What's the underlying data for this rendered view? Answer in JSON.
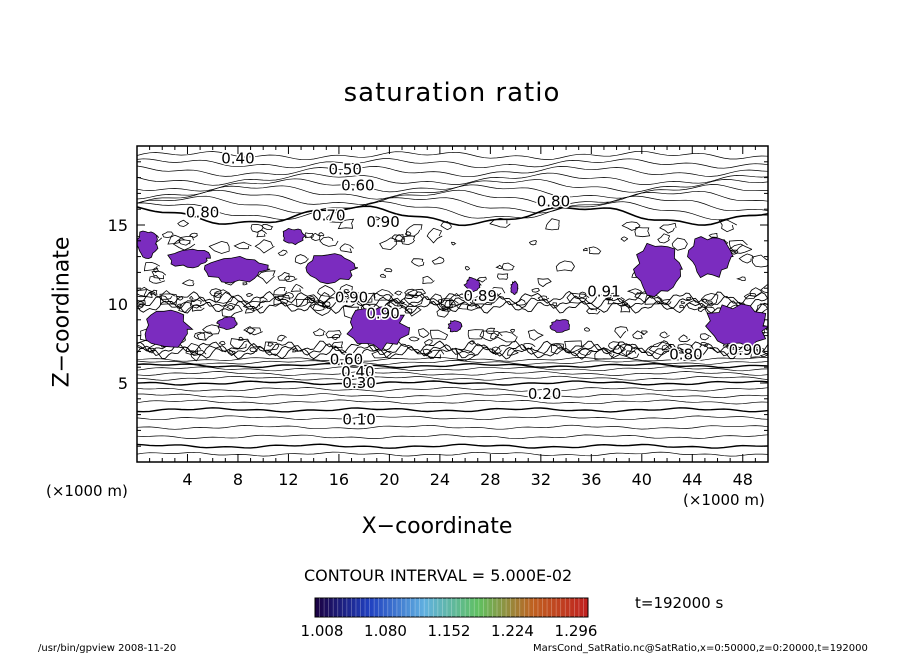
{
  "chart_data": {
    "type": "contour",
    "title": "saturation ratio",
    "xlabel": "X−coordinate",
    "ylabel": "Z−coordinate",
    "x_unit": "(×1000 m)",
    "z_unit": "(×1000 m)",
    "xlim": [
      0,
      50
    ],
    "ylim": [
      0,
      20
    ],
    "x_ticks": [
      4,
      8,
      12,
      16,
      20,
      24,
      28,
      32,
      36,
      40,
      44,
      48
    ],
    "y_ticks": [
      5,
      10,
      15
    ],
    "contour_labels": [
      {
        "text": "0.40",
        "x": 8,
        "z": 19.2
      },
      {
        "text": "0.50",
        "x": 16.5,
        "z": 18.5
      },
      {
        "text": "0.60",
        "x": 17.5,
        "z": 17.5
      },
      {
        "text": "0.80",
        "x": 33,
        "z": 16.5
      },
      {
        "text": "0.80",
        "x": 5.2,
        "z": 15.8
      },
      {
        "text": "0.70",
        "x": 15.2,
        "z": 15.6
      },
      {
        "text": "0.90",
        "x": 19.5,
        "z": 15.2
      },
      {
        "text": "0.90",
        "x": 17,
        "z": 10.4
      },
      {
        "text": "0.90",
        "x": 19.5,
        "z": 9.4
      },
      {
        "text": "0.89",
        "x": 27.2,
        "z": 10.5
      },
      {
        "text": "0.91",
        "x": 37,
        "z": 10.8
      },
      {
        "text": "0.80",
        "x": 43.5,
        "z": 6.8
      },
      {
        "text": "0.90",
        "x": 48.2,
        "z": 7.1
      },
      {
        "text": "0.60",
        "x": 16.6,
        "z": 6.5
      },
      {
        "text": "0.40",
        "x": 17.5,
        "z": 5.7
      },
      {
        "text": "0.30",
        "x": 17.6,
        "z": 5.0
      },
      {
        "text": "0.20",
        "x": 32.3,
        "z": 4.3
      },
      {
        "text": "0.10",
        "x": 17.6,
        "z": 2.7
      }
    ],
    "contour_interval": "CONTOUR INTERVAL = 5.000E-02",
    "colorbar": {
      "ticks": [
        "1.008",
        "1.080",
        "1.152",
        "1.224",
        "1.296"
      ],
      "colors": [
        "#1a0040",
        "#2040c0",
        "#60b0e0",
        "#60c060",
        "#c06020",
        "#c02020"
      ]
    },
    "supersaturated_fill_color": "#7b2cbf",
    "grid": false,
    "legend": "colorbar-bottom"
  },
  "time_label": "t=192000 s",
  "footer_left": "/usr/bin/gpview   2008-11-20",
  "footer_right": "MarsCond_SatRatio.nc@SatRatio,x=0:50000,z=0:20000,t=192000"
}
